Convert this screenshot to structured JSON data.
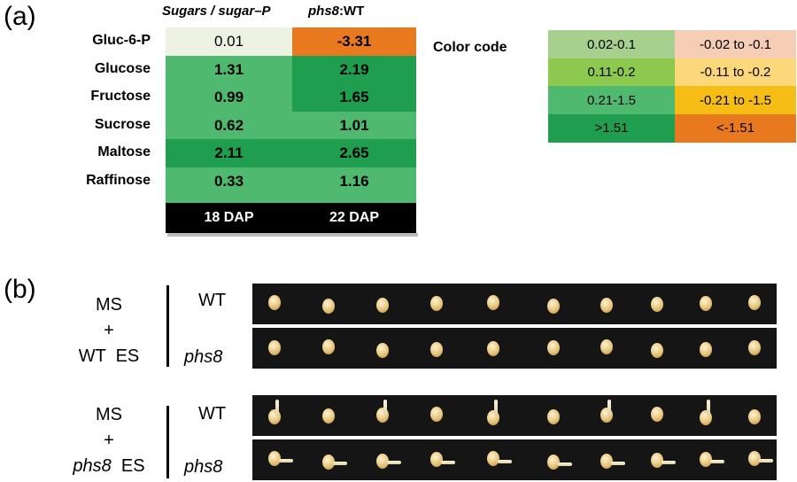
{
  "panel_a": {
    "label": "(a)",
    "col_header_1": "Sugars / sugar–P",
    "col_header_2_italic": "phs8",
    "col_header_2_rest": ":WT",
    "rows": [
      {
        "name": "Gluc-6-P",
        "v18": "0.01",
        "v22": "-3.31",
        "c18": "#eef2e2",
        "c22": "#e8791f",
        "bold18": false
      },
      {
        "name": "Glucose",
        "v18": "1.31",
        "v22": "2.19",
        "c18": "#4fb96f",
        "c22": "#1f9e4f",
        "bold18": true
      },
      {
        "name": "Fructose",
        "v18": "0.99",
        "v22": "1.65",
        "c18": "#4fb96f",
        "c22": "#1f9e4f",
        "bold18": true
      },
      {
        "name": "Sucrose",
        "v18": "0.62",
        "v22": "1.01",
        "c18": "#4fb96f",
        "c22": "#4fb96f",
        "bold18": true
      },
      {
        "name": "Maltose",
        "v18": "2.11",
        "v22": "2.65",
        "c18": "#1f9e4f",
        "c22": "#1f9e4f",
        "bold18": true
      },
      {
        "name": "Raffinose",
        "v18": "0.33",
        "v22": "1.16",
        "c18": "#4fb96f",
        "c22": "#4fb96f",
        "bold18": true
      }
    ],
    "dap_1": "18 DAP",
    "dap_2": "22 DAP",
    "color_code_label": "Color code",
    "legend": [
      {
        "pos": "0.02-0.1",
        "neg": "-0.02 to -0.1",
        "pc": "#a7d08e",
        "nc": "#f6cdb5"
      },
      {
        "pos": "0.11-0.2",
        "neg": "-0.11 to -0.2",
        "pc": "#8cc94e",
        "nc": "#fbd97a"
      },
      {
        "pos": "0.21-1.5",
        "neg": "-0.21 to -1.5",
        "pc": "#4fb96f",
        "nc": "#f6bd16"
      },
      {
        "pos": ">1.51",
        "neg": "<-1.51",
        "pc": "#1f9e4f",
        "nc": "#e8791f"
      }
    ]
  },
  "panel_b": {
    "label": "(b)",
    "group1": {
      "line1": "MS",
      "line2": "+",
      "line3": "WT  ES",
      "geno_top": "WT",
      "geno_bottom": "phs8"
    },
    "group2": {
      "line1": "MS",
      "line2": "+",
      "line3_italic": "phs8",
      "line3_rest": "  ES",
      "geno_top": "WT",
      "geno_bottom": "phs8"
    }
  }
}
